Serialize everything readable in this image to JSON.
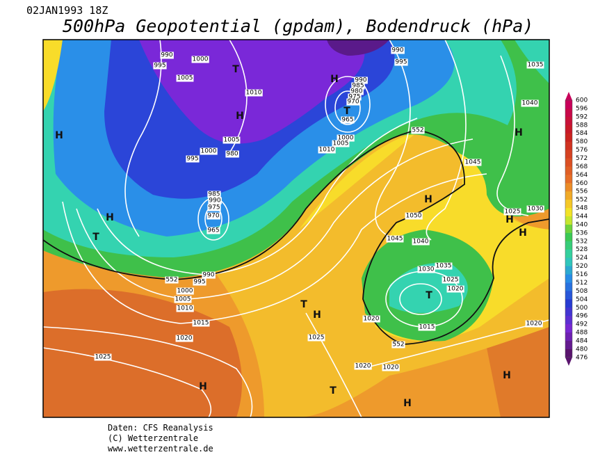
{
  "header": {
    "date": "02JAN1993 18Z",
    "title": "500hPa Geopotential (gpdam), Bodendruck (hPa)"
  },
  "colorbar": {
    "labels": [
      "600",
      "596",
      "592",
      "588",
      "584",
      "580",
      "576",
      "572",
      "568",
      "564",
      "560",
      "556",
      "552",
      "548",
      "544",
      "540",
      "536",
      "532",
      "528",
      "524",
      "520",
      "516",
      "512",
      "508",
      "504",
      "500",
      "496",
      "492",
      "488",
      "484",
      "480",
      "476"
    ]
  },
  "map": {
    "isobar_labels": [
      "990",
      "1000",
      "995",
      "1005",
      "1010",
      "1005",
      "1000",
      "980",
      "995",
      "985",
      "990",
      "975",
      "970",
      "965",
      "990",
      "995",
      "1000",
      "1005",
      "1010",
      "1015",
      "1020",
      "1025",
      "990",
      "995",
      "990",
      "985",
      "980",
      "975",
      "970",
      "965",
      "1000",
      "1005",
      "1010",
      "1035",
      "1040",
      "1045",
      "1050",
      "1045",
      "1040",
      "1030",
      "1035",
      "1025",
      "1020",
      "1015",
      "1020",
      "1025",
      "1020",
      "1020",
      "1020",
      "1025",
      "1030"
    ],
    "contour_labels": [
      "552",
      "552",
      "552"
    ],
    "centers": [
      "H",
      "H",
      "T",
      "H",
      "T",
      "H",
      "T",
      "H",
      "H",
      "H",
      "H",
      "T",
      "H",
      "T",
      "H",
      "T",
      "H",
      "H"
    ]
  },
  "footer": [
    "Daten: CFS Reanalysis",
    "(C) Wetterzentrale",
    "www.wetterzentrale.de"
  ]
}
